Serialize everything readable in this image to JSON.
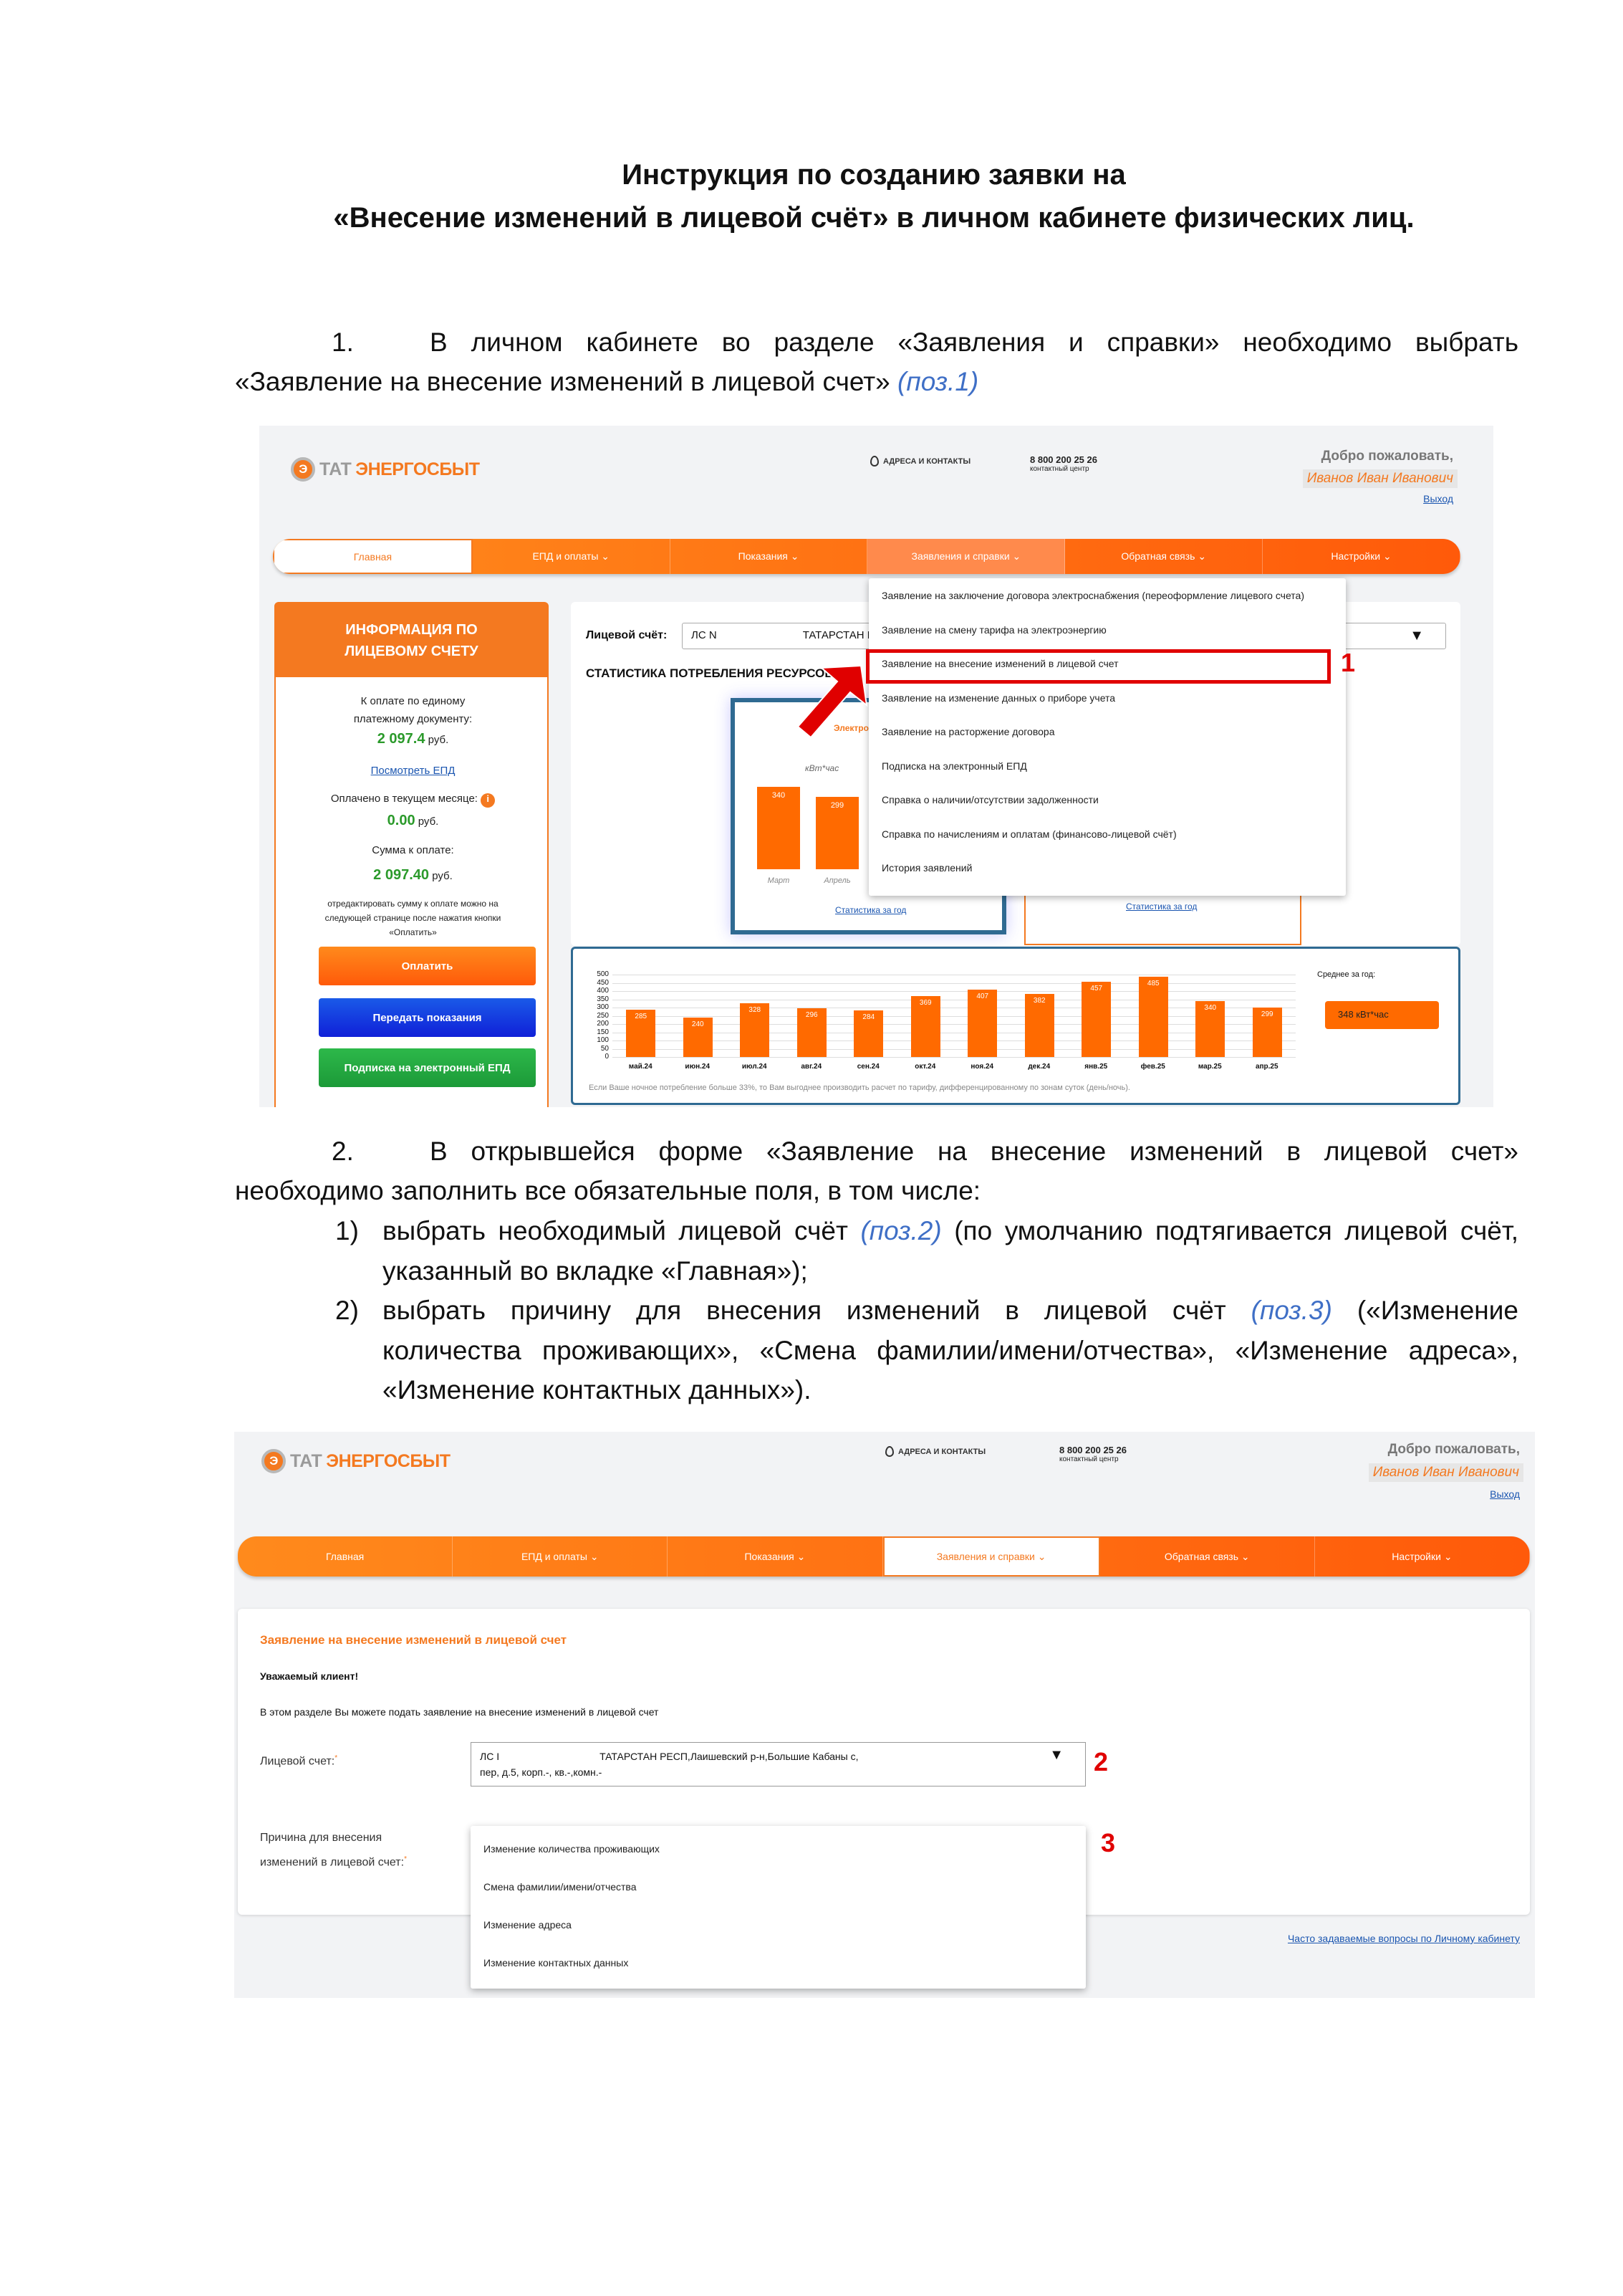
{
  "doc": {
    "title_line1": "Инструкция по созданию заявки на",
    "title_line2": "«Внесение изменений в лицевой счёт» в личном кабинете физических лиц.",
    "step1": {
      "num": "1.",
      "line1": "В личном кабинете во разделе «Заявления и справки» необходимо выбрать",
      "line2": "«Заявление на внесение изменений в лицевой счет»",
      "ref": "(поз.1)"
    },
    "step2": {
      "num": "2.",
      "line1": "В открывшейся форме «Заявление на внесение изменений в лицевой счет»",
      "line2": "необходимо заполнить все обязательные поля, в том числе:",
      "items": [
        {
          "num": "1)",
          "pre": "выбрать необходимый лицевой счёт ",
          "ref": "(поз.2)",
          "post": " (по умолчанию подтягивается лицевой счёт,",
          "line2": "указанный во вкладке «Главная»);"
        },
        {
          "num": "2)",
          "pre": "выбрать причину для внесения изменений в лицевой счёт ",
          "ref": "(поз.3)",
          "post": " («Изменение",
          "line2": "количества проживающих», «Смена фамилии/имени/отчества», «Изменение адреса»,",
          "line3": "«Изменение контактных данных»)."
        }
      ]
    }
  },
  "header": {
    "logo_part1": "ТАТ",
    "logo_part2": "ЭНЕРГОСБЫТ",
    "logo_mark": "Э",
    "address": "АДРЕСА И КОНТАКТЫ",
    "phone": "8 800 200 25 26",
    "phone_caption": "контактный центр",
    "welcome": "Добро пожаловать,",
    "user": "Иванов Иван Иванович",
    "logout": "Выход"
  },
  "nav": [
    "Главная",
    "ЕПД и оплаты ⌄",
    "Показания ⌄",
    "Заявления и справки ⌄",
    "Обратная связь ⌄",
    "Настройки ⌄"
  ],
  "screen1": {
    "info_title": "ИНФОРМАЦИЯ ПО ЛИЦЕВОМУ СЧЕТУ",
    "due_label1": "К оплате по единому",
    "due_label2": "платежному документу:",
    "due_value": "2 097.4",
    "currency": "руб.",
    "view_epd": "Посмотреть ЕПД",
    "paid_label": "Оплачено в текущем месяце:",
    "paid_value": "0.00",
    "sum_label": "Сумма к оплате:",
    "sum_value": "2 097.40",
    "note1": "отредактировать сумму к оплате можно на",
    "note2": "следующей странице после нажатия кнопки",
    "note3": "«Оплатить»",
    "pay_button": "Оплатить",
    "readings_button": "Передать показания",
    "subscribe_button": "Подписка на электронный ЕПД",
    "account_label": "Лицевой счёт:",
    "account_value": "ЛС N",
    "account_addr": "ТАТАРСТАН Р",
    "stats_title": "СТАТИСТИКА ПОТРЕБЛЕНИЯ РЕСУРСОВ",
    "card_resource": "Электро",
    "card_unit": "кВт*час",
    "card_bars": [
      {
        "label": "Март",
        "value": 340
      },
      {
        "label": "Апрель",
        "value": 299
      }
    ],
    "year_stats_link": "Статистика за год",
    "avg_label": "Среднее за год:",
    "avg_value": "348 кВт*час",
    "footnote": "Если Ваше ночное потребление больше 33%, то Вам выгоднее производить расчет по тарифу, дифференцированному по зонам суток (день/ночь).",
    "menu": [
      "Заявление на заключение договора электроснабжения (переоформление лицевого счета)",
      "Заявление на смену тарифа на электроэнергию",
      "Заявление на внесение изменений в лицевой счет",
      "Заявление на изменение данных о приборе учета",
      "Заявление на расторжение договора",
      "Подписка на электронный ЕПД",
      "Справка о наличии/отсутствии задолженности",
      "Справка по начислениям и оплатам (финансово-лицевой счёт)",
      "История заявлений"
    ],
    "marker": "1"
  },
  "chart_data": {
    "type": "bar",
    "categories": [
      "май.24",
      "июн.24",
      "июл.24",
      "авг.24",
      "сен.24",
      "окт.24",
      "ноя.24",
      "дек.24",
      "янв.25",
      "фев.25",
      "мар.25",
      "апр.25"
    ],
    "values": [
      285,
      240,
      328,
      296,
      284,
      369,
      407,
      382,
      457,
      485,
      340,
      299
    ],
    "ylim": [
      0,
      500
    ],
    "yticks": [
      0,
      50,
      100,
      150,
      200,
      250,
      300,
      350,
      400,
      450,
      500
    ],
    "grid": true,
    "color": "#ff6a00"
  },
  "screen2": {
    "form_title": "Заявление на внесение изменений в лицевой счет",
    "greeting": "Уважаемый клиент!",
    "intro": "В этом разделе Вы можете подать заявление на внесение изменений в лицевой счет",
    "account_label": "Лицевой счет:",
    "required": "*",
    "account_line1_a": "ЛС I",
    "account_line1_b": "ТАТАРСТАН РЕСП,Лаишевский р-н,Большие Кабаны с,",
    "account_line2": "пер, д.5, корп.-, кв.-,комн.-",
    "reason_label1": "Причина для внесения",
    "reason_label2": "изменений в лицевой счет:",
    "reasons": [
      "Изменение количества проживающих",
      "Смена фамилии/имени/отчества",
      "Изменение адреса",
      "Изменение контактных данных"
    ],
    "faq_link": "Часто задаваемые вопросы по Личному кабинету",
    "marker2": "2",
    "marker3": "3"
  },
  "colors": {
    "brand": "#f47920",
    "marker": "#e00000",
    "ref": "#3f6fc6",
    "blue_button": "#1434e0",
    "green_button": "#22a03c"
  }
}
